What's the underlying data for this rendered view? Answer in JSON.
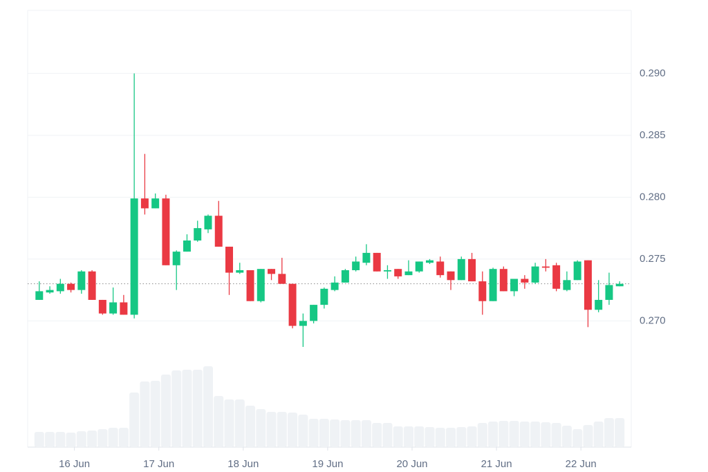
{
  "chart_data": {
    "type": "candlestick",
    "x": [
      0,
      1,
      2,
      3,
      4,
      5,
      6,
      7,
      8,
      9,
      10,
      11,
      12,
      13,
      14,
      15,
      16,
      17,
      18,
      19,
      20,
      21,
      22,
      23,
      24,
      25,
      26,
      27,
      28,
      29,
      30,
      31,
      32,
      33,
      34,
      35,
      36,
      37,
      38,
      39,
      40,
      41,
      42,
      43,
      44,
      45,
      46,
      47,
      48,
      49,
      50,
      51,
      52,
      53,
      54,
      55
    ],
    "open": [
      0.2717,
      0.2723,
      0.2724,
      0.273,
      0.2725,
      0.274,
      0.2717,
      0.2706,
      0.2715,
      0.2705,
      0.2799,
      0.2791,
      0.2799,
      0.2745,
      0.2756,
      0.2765,
      0.2774,
      0.2785,
      0.276,
      0.2739,
      0.2741,
      0.2716,
      0.2742,
      0.2738,
      0.273,
      0.2696,
      0.27,
      0.2713,
      0.2725,
      0.2731,
      0.2741,
      0.2747,
      0.2755,
      0.274,
      0.2742,
      0.2737,
      0.274,
      0.2747,
      0.2748,
      0.274,
      0.2733,
      0.275,
      0.2732,
      0.2716,
      0.2742,
      0.2724,
      0.2734,
      0.2731,
      0.2744,
      0.2745,
      0.2725,
      0.2733,
      0.2749,
      0.2709,
      0.2717,
      0.2728
    ],
    "high": [
      0.2732,
      0.2728,
      0.2734,
      0.2731,
      0.2741,
      0.2741,
      0.2717,
      0.2727,
      0.2721,
      0.29,
      0.2835,
      0.2803,
      0.2802,
      0.2757,
      0.277,
      0.2781,
      0.2786,
      0.2797,
      0.276,
      0.2747,
      0.2741,
      0.2742,
      0.2742,
      0.2751,
      0.273,
      0.2706,
      0.2713,
      0.2727,
      0.2736,
      0.2742,
      0.2752,
      0.2762,
      0.2755,
      0.2745,
      0.2742,
      0.2749,
      0.2748,
      0.275,
      0.2752,
      0.274,
      0.2752,
      0.2755,
      0.274,
      0.2743,
      0.2744,
      0.2734,
      0.2737,
      0.2747,
      0.275,
      0.2747,
      0.274,
      0.2749,
      0.2749,
      0.2733,
      0.2739,
      0.2732
    ],
    "low": [
      0.2717,
      0.2722,
      0.2722,
      0.2723,
      0.2722,
      0.2717,
      0.2705,
      0.2705,
      0.2705,
      0.2702,
      0.2786,
      0.2791,
      0.2745,
      0.2725,
      0.2756,
      0.2764,
      0.2771,
      0.276,
      0.2721,
      0.2738,
      0.2716,
      0.2715,
      0.2733,
      0.273,
      0.2694,
      0.2679,
      0.2698,
      0.271,
      0.2724,
      0.2731,
      0.274,
      0.2745,
      0.274,
      0.2734,
      0.2734,
      0.2737,
      0.2739,
      0.2746,
      0.2735,
      0.2725,
      0.2733,
      0.2732,
      0.2705,
      0.2716,
      0.2724,
      0.272,
      0.2726,
      0.273,
      0.274,
      0.2724,
      0.2724,
      0.2733,
      0.2695,
      0.2707,
      0.2713,
      0.2728
    ],
    "close": [
      0.2724,
      0.2725,
      0.273,
      0.2725,
      0.274,
      0.2717,
      0.2706,
      0.2715,
      0.2705,
      0.2799,
      0.2791,
      0.2799,
      0.2745,
      0.2756,
      0.2765,
      0.2775,
      0.2785,
      0.276,
      0.2739,
      0.2741,
      0.2716,
      0.2742,
      0.2738,
      0.273,
      0.2696,
      0.27,
      0.2713,
      0.2726,
      0.2731,
      0.2741,
      0.2748,
      0.2755,
      0.274,
      0.2741,
      0.2736,
      0.274,
      0.2748,
      0.2749,
      0.2737,
      0.2733,
      0.275,
      0.2732,
      0.2716,
      0.2742,
      0.2724,
      0.2734,
      0.2731,
      0.2744,
      0.2743,
      0.2726,
      0.2733,
      0.2748,
      0.2709,
      0.2717,
      0.2729,
      0.273
    ],
    "volume": [
      22,
      22,
      22,
      21,
      23,
      24,
      26,
      28,
      28,
      79,
      95,
      96,
      105,
      111,
      112,
      112,
      117,
      74,
      69,
      69,
      60,
      55,
      51,
      51,
      50,
      47,
      41,
      41,
      40,
      39,
      39,
      39,
      35,
      35,
      30,
      30,
      30,
      29,
      28,
      28,
      29,
      30,
      35,
      37,
      38,
      38,
      37,
      37,
      36,
      35,
      31,
      26,
      32,
      37,
      42,
      42
    ],
    "up_color": "#16c784",
    "down_color": "#ea3943",
    "volume_color": "#eff2f5",
    "last_price": 0.273,
    "xlim": [
      -1.1,
      56.1
    ],
    "ylim": [
      0.2598,
      0.2951
    ],
    "volume_lim": [
      0,
      632
    ],
    "yticks": [
      {
        "value": 0.27,
        "label": "0.270"
      },
      0.275,
      {
        "value": 0.28,
        "label": "0.280"
      },
      0.285,
      {
        "value": 0.29,
        "label": "0.290"
      }
    ],
    "xticks": [
      {
        "value": 3.33,
        "label": "16 Jun"
      },
      {
        "value": 11.33,
        "label": "17 Jun"
      },
      {
        "value": 19.33,
        "label": "18 Jun"
      },
      {
        "value": 27.33,
        "label": "19 Jun"
      },
      {
        "value": 35.33,
        "label": "20 Jun"
      },
      {
        "value": 43.33,
        "label": "21 Jun"
      },
      {
        "value": 51.33,
        "label": "22 Jun"
      }
    ],
    "grid": true
  }
}
